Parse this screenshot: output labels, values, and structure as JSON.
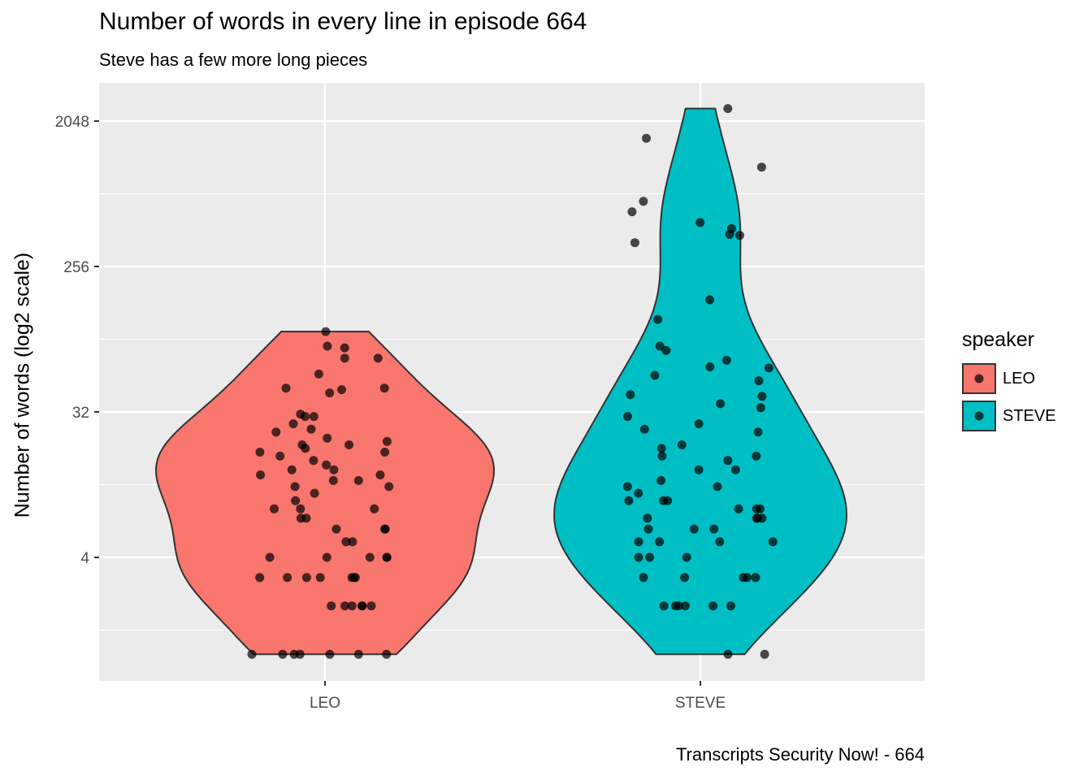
{
  "chart_data": {
    "type": "violin",
    "title": "Number of words in every line in episode 664",
    "subtitle": "Steve has a few more long pieces",
    "caption": "Transcripts Security Now! - 664",
    "xlabel": "",
    "ylabel": "Number of words (log2 scale)",
    "y_scale": "log2",
    "ylim": [
      1,
      2600
    ],
    "y_ticks": [
      4,
      32,
      256,
      2048
    ],
    "categories": [
      "LEO",
      "STEVE"
    ],
    "legend": {
      "title": "speaker",
      "position": "right",
      "entries": [
        "LEO",
        "STEVE"
      ]
    },
    "colors": {
      "LEO": "#F8766D",
      "STEVE": "#00BFC4",
      "panel": "#EBEBEB",
      "grid": "#FFFFFF",
      "outline": "#333333"
    },
    "grid": true,
    "series": [
      {
        "name": "LEO",
        "min": 1,
        "max": 101,
        "points": [
          1,
          1,
          1,
          1,
          1,
          1,
          1,
          2,
          2,
          2,
          2,
          2,
          2,
          3,
          3,
          3,
          3,
          3,
          3,
          3,
          4,
          4,
          4,
          4,
          4,
          5,
          5,
          6,
          6,
          6,
          7,
          7,
          8,
          8,
          8,
          9,
          10,
          11,
          11,
          12,
          12,
          13,
          13,
          14,
          14,
          15,
          16,
          17,
          18,
          18,
          19,
          20,
          20,
          21,
          22,
          24,
          25,
          27,
          30,
          30,
          31,
          42,
          44,
          45,
          45,
          55,
          69,
          69,
          80,
          82,
          101
        ]
      },
      {
        "name": "STEVE",
        "min": 1,
        "max": 2448,
        "points": [
          1,
          1,
          2,
          2,
          2,
          2,
          2,
          2,
          3,
          3,
          3,
          3,
          3,
          4,
          4,
          4,
          5,
          5,
          5,
          5,
          6,
          6,
          6,
          7,
          7,
          7,
          7,
          8,
          8,
          8,
          9,
          9,
          9,
          10,
          11,
          11,
          12,
          14,
          14,
          16,
          17,
          17,
          19,
          20,
          24,
          25,
          27,
          30,
          34,
          36,
          40,
          41,
          50,
          54,
          60,
          61,
          67,
          77,
          82,
          120,
          159,
          360,
          400,
          405,
          440,
          480,
          560,
          650,
          1060,
          1600,
          2448
        ]
      }
    ]
  }
}
